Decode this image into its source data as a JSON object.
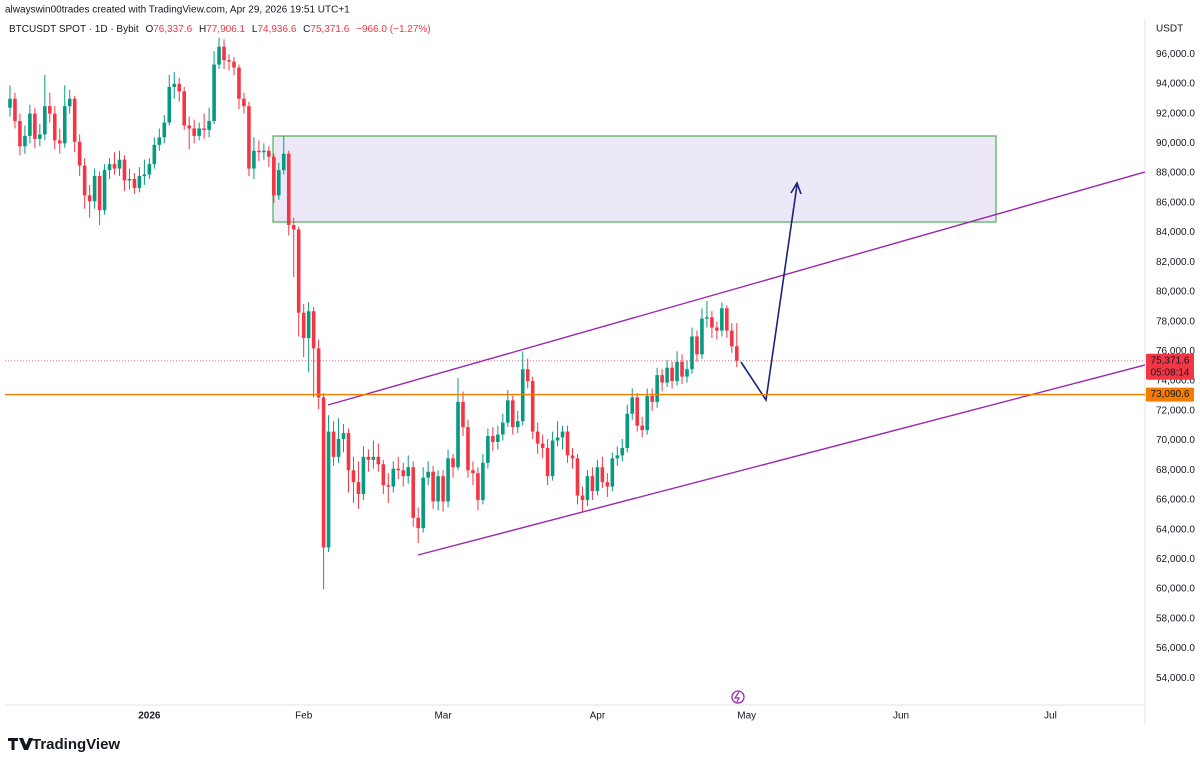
{
  "chart_data": {
    "type": "candlestick",
    "attribution": "alwayswin00trades created with TradingView.com, Apr 29, 2026 19:51 UTC+1",
    "symbol": "BTCUSDT SPOT · 1D · Bybit",
    "ohlc_legend": [
      {
        "key": "O",
        "label": "76,337.6"
      },
      {
        "key": "H",
        "label": "77,906.1"
      },
      {
        "key": "L",
        "label": "74,936.6"
      },
      {
        "key": "C",
        "label": "75,371.6"
      }
    ],
    "change_label": "−966.0 (−1.27%)",
    "y_unit": "USDT",
    "up_color": "#089981",
    "down_color": "#f23645",
    "xlim": [
      -29,
      200
    ],
    "xticks": [
      {
        "value": 0,
        "label": "2026"
      },
      {
        "value": 31,
        "label": "Feb"
      },
      {
        "value": 59,
        "label": "Mar"
      },
      {
        "value": 90,
        "label": "Apr"
      },
      {
        "value": 120,
        "label": "May"
      },
      {
        "value": 151,
        "label": "Jun"
      },
      {
        "value": 181,
        "label": "Jul"
      }
    ],
    "ylim": [
      52200,
      98300
    ],
    "yticks": [
      {
        "value": 54000,
        "label": "54,000.0"
      },
      {
        "value": 56000,
        "label": "56,000.0"
      },
      {
        "value": 58000,
        "label": "58,000.0"
      },
      {
        "value": 60000,
        "label": "60,000.0"
      },
      {
        "value": 62000,
        "label": "62,000.0"
      },
      {
        "value": 64000,
        "label": "64,000.0"
      },
      {
        "value": 66000,
        "label": "66,000.0"
      },
      {
        "value": 68000,
        "label": "68,000.0"
      },
      {
        "value": 70000,
        "label": "70,000.0"
      },
      {
        "value": 72000,
        "label": "72,000.0"
      },
      {
        "value": 74000,
        "label": "74,000.0"
      },
      {
        "value": 76000,
        "label": "76,000.0"
      },
      {
        "value": 78000,
        "label": "78,000.0"
      },
      {
        "value": 80000,
        "label": "80,000.0"
      },
      {
        "value": 82000,
        "label": "82,000.0"
      },
      {
        "value": 84000,
        "label": "84,000.0"
      },
      {
        "value": 86000,
        "label": "86,000.0"
      },
      {
        "value": 88000,
        "label": "88,000.0"
      },
      {
        "value": 90000,
        "label": "90,000.0"
      },
      {
        "value": 92000,
        "label": "92,000.0"
      },
      {
        "value": 94000,
        "label": "94,000.0"
      },
      {
        "value": 96000,
        "label": "96,000.0"
      }
    ],
    "grid": false,
    "last_price": {
      "value": 75371.6,
      "label": "75,371.6",
      "countdown": "05:08:14",
      "color": "#f23645"
    },
    "horizontal_line": {
      "value": 73090.6,
      "label": "73,090.6",
      "color": "#f57c00"
    },
    "candles": {
      "x": [
        -28,
        -27,
        -26,
        -25,
        -24,
        -23,
        -22,
        -21,
        -20,
        -19,
        -18,
        -17,
        -16,
        -15,
        -14,
        -13,
        -12,
        -11,
        -10,
        -9,
        -8,
        -7,
        -6,
        -5,
        -4,
        -3,
        -2,
        -1,
        0,
        1,
        2,
        3,
        4,
        5,
        6,
        7,
        8,
        9,
        10,
        11,
        12,
        13,
        14,
        15,
        16,
        17,
        18,
        19,
        20,
        21,
        22,
        23,
        24,
        25,
        26,
        27,
        28,
        29,
        30,
        31,
        32,
        33,
        34,
        35,
        36,
        37,
        38,
        39,
        40,
        41,
        42,
        43,
        44,
        45,
        46,
        47,
        48,
        49,
        50,
        51,
        52,
        53,
        54,
        55,
        56,
        57,
        58,
        59,
        60,
        61,
        62,
        63,
        64,
        65,
        66,
        67,
        68,
        69,
        70,
        71,
        72,
        73,
        74,
        75,
        76,
        77,
        78,
        79,
        80,
        81,
        82,
        83,
        84,
        85,
        86,
        87,
        88,
        89,
        90,
        91,
        92,
        93,
        94,
        95,
        96,
        97,
        98,
        99,
        100,
        101,
        102,
        103,
        104,
        105,
        106,
        107,
        108,
        109,
        110,
        111,
        112,
        113,
        114,
        115,
        116,
        117,
        118
      ],
      "open": [
        92400,
        93000,
        91500,
        89800,
        90500,
        92000,
        90300,
        90600,
        92500,
        92000,
        90200,
        90000,
        92500,
        93000,
        90100,
        88500,
        86500,
        86100,
        87800,
        85500,
        88200,
        88600,
        88300,
        88900,
        87500,
        87600,
        87000,
        87800,
        87900,
        88600,
        89900,
        90400,
        91400,
        93800,
        94000,
        93500,
        91200,
        91000,
        90500,
        91000,
        90900,
        91500,
        95300,
        96500,
        95600,
        95500,
        95100,
        93000,
        92500,
        88300,
        89500,
        89400,
        89500,
        89100,
        86500,
        88200,
        89300,
        84500,
        84200,
        78600,
        76900,
        78700,
        76200,
        72900,
        62800,
        70600,
        68900,
        70100,
        70500,
        68000,
        67200,
        66400,
        68900,
        68700,
        68900,
        68400,
        67000,
        66900,
        68100,
        68000,
        67600,
        68200,
        64800,
        64100,
        67500,
        67900,
        65900,
        67600,
        65900,
        68800,
        68200,
        72600,
        70900,
        68000,
        67800,
        66000,
        68500,
        70300,
        69900,
        70400,
        71200,
        72700,
        70900,
        71300,
        74800,
        74000,
        70600,
        69800,
        69500,
        67600,
        70000,
        70200,
        70600,
        69000,
        68800,
        66300,
        66000,
        67600,
        66600,
        68200,
        67200,
        66900,
        68800,
        69000,
        69500,
        71800,
        72900,
        71000,
        70700,
        73000,
        72600,
        74400,
        73900,
        74900,
        74000,
        75300,
        74300,
        74800,
        77000,
        75800,
        78200,
        78300,
        77600,
        77400,
        78900,
        77400,
        76337.6
      ],
      "high": [
        93900,
        93400,
        92000,
        91200,
        92600,
        92400,
        91300,
        94600,
        93400,
        92500,
        91000,
        93900,
        93600,
        93200,
        90600,
        89000,
        87200,
        88300,
        88100,
        88600,
        89000,
        89400,
        89500,
        89200,
        88300,
        88000,
        88400,
        88900,
        89000,
        90400,
        91000,
        91900,
        94600,
        94800,
        94400,
        93800,
        91800,
        91600,
        91400,
        92000,
        92400,
        96200,
        97100,
        97000,
        96000,
        95800,
        95300,
        93400,
        92800,
        90400,
        90200,
        90000,
        89800,
        89300,
        88700,
        90500,
        89500,
        85000,
        84400,
        79200,
        79300,
        79000,
        76800,
        73200,
        71700,
        71300,
        71500,
        71100,
        70800,
        68900,
        68600,
        69600,
        69400,
        70000,
        69800,
        68700,
        67800,
        68600,
        68900,
        68500,
        69000,
        68600,
        65500,
        68200,
        68600,
        68300,
        68000,
        68000,
        69400,
        69100,
        74200,
        73300,
        71400,
        68600,
        68200,
        69100,
        70800,
        70900,
        71000,
        71800,
        73400,
        73000,
        72000,
        76000,
        75500,
        74300,
        71200,
        70400,
        70100,
        70600,
        71300,
        71000,
        71000,
        69500,
        69100,
        66900,
        68000,
        68200,
        68700,
        68900,
        67800,
        69200,
        69600,
        70100,
        72400,
        73500,
        73200,
        71600,
        73500,
        73500,
        74900,
        74800,
        75400,
        75300,
        76000,
        75800,
        75400,
        77600,
        77400,
        78900,
        79400,
        78700,
        78000,
        79300,
        79100,
        77900,
        77906.1
      ],
      "low": [
        91800,
        91000,
        89200,
        89300,
        90000,
        89700,
        89800,
        90200,
        91400,
        89600,
        89300,
        89700,
        92000,
        89400,
        87800,
        85600,
        85000,
        85600,
        84500,
        85200,
        87600,
        87900,
        87800,
        86800,
        86900,
        86600,
        86700,
        87200,
        87600,
        88300,
        89500,
        90000,
        91200,
        93000,
        92800,
        90900,
        89600,
        90000,
        90200,
        90300,
        90400,
        91300,
        95000,
        95000,
        94900,
        94600,
        92300,
        92000,
        87800,
        87600,
        88800,
        88900,
        88400,
        86000,
        86200,
        87900,
        83800,
        81000,
        77000,
        75600,
        74600,
        72900,
        72100,
        60000,
        62500,
        68300,
        68500,
        69200,
        66500,
        65800,
        65400,
        66000,
        67900,
        68100,
        67900,
        66400,
        65800,
        66500,
        67400,
        66900,
        67100,
        64200,
        63100,
        63800,
        67000,
        65400,
        65300,
        65200,
        65500,
        67500,
        68000,
        70300,
        67500,
        67000,
        65300,
        65700,
        68100,
        69300,
        69400,
        70000,
        70900,
        70400,
        70500,
        71000,
        73500,
        70100,
        69100,
        68800,
        67000,
        67300,
        69600,
        69400,
        68500,
        68100,
        65700,
        65200,
        65600,
        66000,
        66300,
        66800,
        66200,
        66600,
        68300,
        68600,
        69200,
        71400,
        70600,
        70200,
        70400,
        72000,
        72200,
        73300,
        73600,
        73500,
        73700,
        73800,
        73900,
        74500,
        75300,
        75500,
        77600,
        76900,
        76800,
        77000,
        76900,
        75900,
        74936.6
      ],
      "close": [
        93000,
        91500,
        89800,
        90500,
        92000,
        90300,
        90600,
        92500,
        92000,
        90200,
        90000,
        92500,
        93000,
        90100,
        88500,
        86500,
        86100,
        87800,
        85500,
        88200,
        88600,
        88300,
        88900,
        87500,
        87600,
        87000,
        87800,
        87900,
        88600,
        89900,
        90400,
        91400,
        93800,
        94000,
        93500,
        91200,
        91000,
        90500,
        91000,
        90900,
        91500,
        95300,
        96500,
        95600,
        95500,
        95100,
        93000,
        92500,
        88300,
        89500,
        89400,
        89500,
        89100,
        86500,
        88200,
        89300,
        84500,
        84200,
        78600,
        76900,
        78700,
        76200,
        72900,
        62800,
        70600,
        68900,
        70100,
        70500,
        68000,
        67200,
        66400,
        68900,
        68700,
        68900,
        68400,
        67000,
        66900,
        68100,
        68000,
        67600,
        68200,
        64800,
        64100,
        67500,
        67900,
        65900,
        67600,
        65900,
        68800,
        68200,
        72600,
        70900,
        68000,
        67800,
        66000,
        68500,
        70300,
        69900,
        70400,
        71200,
        72700,
        70900,
        71300,
        74800,
        74000,
        70600,
        69800,
        69500,
        67600,
        70000,
        70200,
        70600,
        69000,
        68800,
        66300,
        66000,
        67600,
        66600,
        68200,
        67200,
        66900,
        68800,
        69000,
        69500,
        71800,
        72900,
        71000,
        70700,
        73000,
        72600,
        74400,
        73900,
        74900,
        74000,
        75300,
        74300,
        74800,
        77000,
        75800,
        78200,
        78300,
        77600,
        77400,
        78900,
        77400,
        76337.6,
        75371.6
      ]
    }
  },
  "footer": {
    "brand": "TradingView"
  }
}
